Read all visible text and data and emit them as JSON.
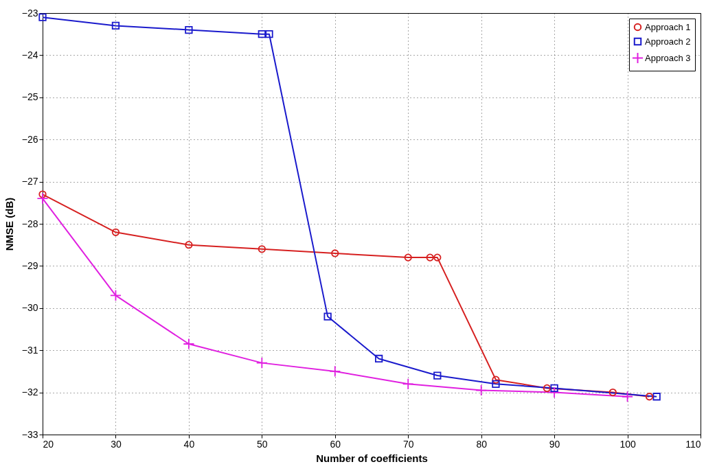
{
  "chart_data": {
    "type": "line",
    "xlabel": "Number of coefficients",
    "ylabel": "NMSE (dB)",
    "xlim": [
      20,
      110
    ],
    "xticks": [
      20,
      30,
      40,
      50,
      60,
      70,
      80,
      90,
      100,
      110
    ],
    "ylim": [
      -33,
      -23
    ],
    "yticks": [
      -33,
      -32,
      -31,
      -30,
      -29,
      -28,
      -27,
      -26,
      -25,
      -24,
      -23
    ],
    "grid": true,
    "legend": "top right",
    "line_style": "solid",
    "series": [
      {
        "name": "Approach 1",
        "color": "#d62020",
        "marker": "circle",
        "x": [
          20,
          30,
          40,
          50,
          60,
          70,
          73,
          74,
          82,
          89,
          98,
          103
        ],
        "values": [
          -27.3,
          -28.2,
          -28.5,
          -28.6,
          -28.7,
          -28.8,
          -28.8,
          -28.8,
          -31.7,
          -31.9,
          -32.0,
          -32.1
        ]
      },
      {
        "name": "Approach 2",
        "color": "#1a1acc",
        "marker": "square",
        "x": [
          20,
          30,
          40,
          50,
          51,
          59,
          66,
          74,
          82,
          90,
          104
        ],
        "values": [
          -23.1,
          -23.3,
          -23.4,
          -23.5,
          -23.5,
          -30.2,
          -31.2,
          -31.6,
          -31.8,
          -31.9,
          -32.1
        ]
      },
      {
        "name": "Approach 3",
        "color": "#e020e0",
        "marker": "cross",
        "x": [
          20,
          30,
          40,
          50,
          60,
          70,
          80,
          90,
          100
        ],
        "values": [
          -27.4,
          -29.7,
          -30.85,
          -31.3,
          -31.5,
          -31.8,
          -31.95,
          -32.0,
          -32.1
        ]
      }
    ]
  }
}
